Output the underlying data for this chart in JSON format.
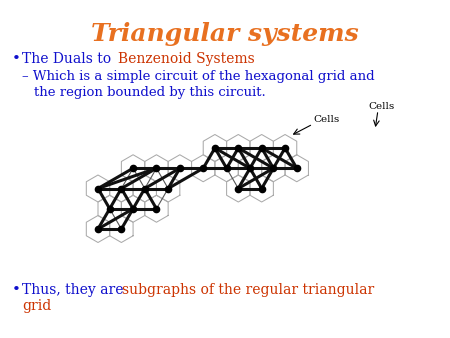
{
  "title": "Triangular systems",
  "title_color": "#E87020",
  "title_fontsize": 18,
  "bullet_text_color": "#1010CC",
  "bullet1_red_text": "Benzenoid Systems",
  "bullet1_red_color": "#CC3300",
  "bullet3_red_text": "subgraphs of the regular triangular\n   grid",
  "bullet3_red_color": "#CC3300",
  "cells_label": "Cells",
  "background_color": "#ffffff",
  "hex_color": "#aaaaaa",
  "thin_graph_color": "#555555",
  "thick_graph_color": "#111111"
}
